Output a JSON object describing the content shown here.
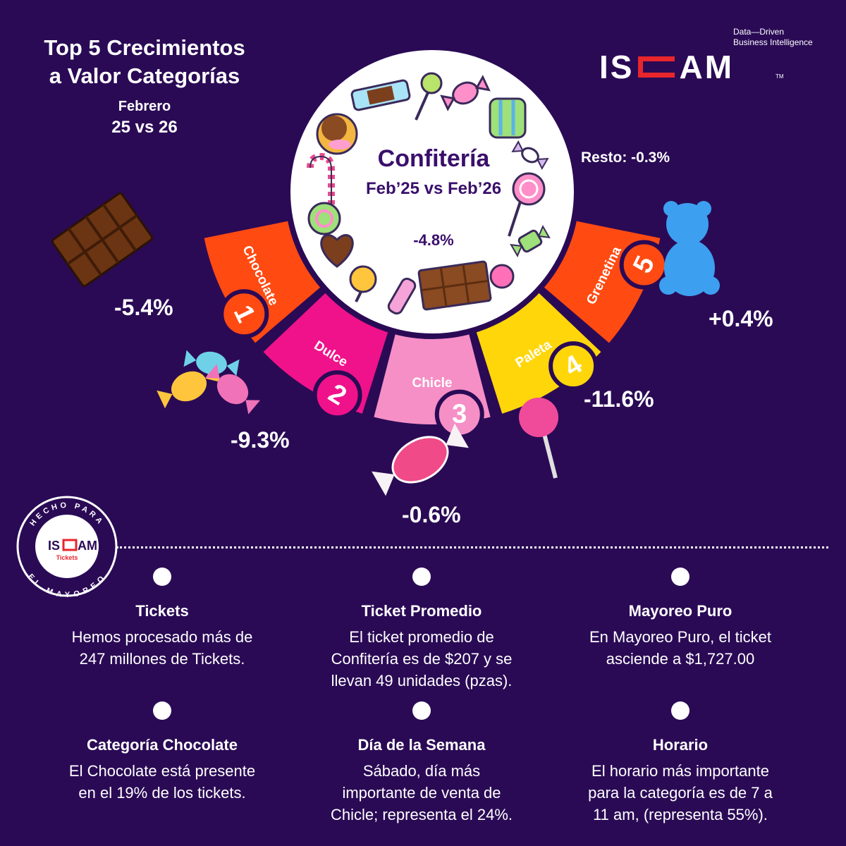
{
  "header": {
    "title_line1": "Top 5 Crecimientos",
    "title_line2": "a Valor Categorías",
    "period_line1": "Febrero",
    "period_line2": "25 vs 26"
  },
  "brand": {
    "tagline_line1": "Data—Driven",
    "tagline_line2": "Business Intelligence",
    "logo_left": "IS",
    "logo_right": "AM",
    "tm": "TM",
    "accent": "#e8262b"
  },
  "center": {
    "title": "Confitería",
    "subtitle": "Feb’25 vs Feb’26",
    "change": "-4.8%"
  },
  "resto": "Resto: -0.3%",
  "categories": [
    {
      "rank": "1",
      "name": "Chocolate",
      "change": "-5.4%",
      "color": "#ff4a12",
      "icon": "chocolate-bar-icon"
    },
    {
      "rank": "2",
      "name": "Dulce",
      "change": "-9.3%",
      "color": "#f0128a",
      "icon": "wrapped-candies-icon"
    },
    {
      "rank": "3",
      "name": "Chicle",
      "change": "-0.6%",
      "color": "#f58fc6",
      "icon": "gum-candy-icon"
    },
    {
      "rank": "4",
      "name": "Paleta",
      "change": "-11.6%",
      "color": "#ffd60a",
      "icon": "lollipop-icon"
    },
    {
      "rank": "5",
      "name": "Grenetina",
      "change": "+0.4%",
      "color": "#ff4a12",
      "icon": "gummy-bear-icon"
    }
  ],
  "badge": {
    "top_text": "HECHO PARA",
    "bottom_text": "EL MAYOREO",
    "logo_left": "IS",
    "logo_right": "AM",
    "sub": "Tickets"
  },
  "info": [
    {
      "title": "Tickets",
      "text": [
        "Hemos procesado más de",
        "247 millones de Tickets."
      ]
    },
    {
      "title": "Ticket Promedio",
      "text": [
        "El ticket promedio de",
        "Confitería es de $207 y se",
        "llevan 49 unidades (pzas)."
      ]
    },
    {
      "title": "Mayoreo Puro",
      "text": [
        "En Mayoreo Puro, el ticket",
        "asciende a $1,727.00"
      ]
    },
    {
      "title": "Categoría Chocolate",
      "text": [
        "El Chocolate está presente",
        "en el 19% de los tickets."
      ]
    },
    {
      "title": "Día de la Semana",
      "text": [
        "Sábado, día más",
        "importante de venta de",
        "Chicle; representa el 24%."
      ]
    },
    {
      "title": "Horario",
      "text": [
        "El horario más importante",
        "para la categoría es de 7 a",
        "11 am, (representa 55%)."
      ]
    }
  ]
}
